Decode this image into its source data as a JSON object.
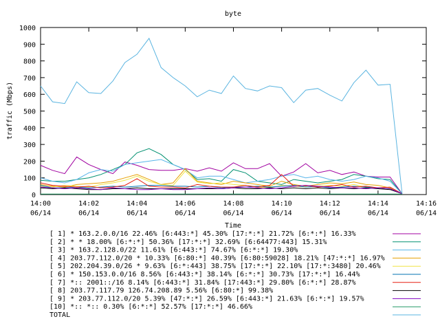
{
  "chart_data": {
    "type": "line",
    "title": "byte",
    "xlabel": "Time",
    "ylabel": "traffic (Mbps)",
    "ylim": [
      0,
      1000
    ],
    "y_ticks": [
      0,
      100,
      200,
      300,
      400,
      500,
      600,
      700,
      800,
      900,
      1000
    ],
    "xlim": [
      0,
      16
    ],
    "x_ticks": [
      {
        "value": 0,
        "time": "14:00",
        "date": "06/14"
      },
      {
        "value": 2,
        "time": "14:02",
        "date": "06/14"
      },
      {
        "value": 4,
        "time": "14:04",
        "date": "06/14"
      },
      {
        "value": 6,
        "time": "14:06",
        "date": "06/14"
      },
      {
        "value": 8,
        "time": "14:08",
        "date": "06/14"
      },
      {
        "value": 10,
        "time": "14:10",
        "date": "06/14"
      },
      {
        "value": 12,
        "time": "14:12",
        "date": "06/14"
      },
      {
        "value": 14,
        "time": "14:14",
        "date": "06/14"
      },
      {
        "value": 16,
        "time": "14:16",
        "date": "06/14"
      }
    ],
    "grid": false,
    "legend_position": "bottom",
    "x": [
      0,
      0.5,
      1,
      1.5,
      2,
      2.5,
      3,
      3.5,
      4,
      4.5,
      5,
      5.5,
      6,
      6.5,
      7,
      7.5,
      8,
      8.5,
      9,
      9.5,
      10,
      10.5,
      11,
      11.5,
      12,
      12.5,
      13,
      13.5,
      14,
      14.5,
      15
    ],
    "series": [
      {
        "name": "[ 1] * 163.2.0.0/16 22.46%  [6:443:*] 45.30% [17:*:*] 21.72% [6:*:*] 16.33%",
        "color": "#a000a0",
        "values": [
          175,
          145,
          125,
          225,
          180,
          150,
          125,
          195,
          175,
          150,
          145,
          145,
          155,
          140,
          160,
          140,
          190,
          155,
          155,
          185,
          110,
          135,
          185,
          130,
          145,
          120,
          135,
          110,
          105,
          105,
          5
        ]
      },
      {
        "name": "[ 2] * * 18.00%  [6:*:*] 50.36% [17:*:*] 32.69% [6:64477:443] 15.31%",
        "color": "#009070",
        "values": [
          85,
          80,
          80,
          90,
          100,
          120,
          150,
          180,
          250,
          275,
          240,
          180,
          150,
          90,
          95,
          80,
          150,
          130,
          80,
          70,
          60,
          90,
          80,
          70,
          80,
          90,
          120,
          110,
          95,
          90,
          5
        ]
      },
      {
        "name": "[ 3] * 163.2.128.0/22 11.61%  [6:443:*] 74.67% [6:*:*] 19.30%",
        "color": "#56b4e9",
        "values": [
          100,
          80,
          70,
          90,
          130,
          150,
          140,
          180,
          190,
          200,
          210,
          180,
          150,
          100,
          110,
          110,
          90,
          70,
          80,
          90,
          110,
          120,
          100,
          110,
          90,
          80,
          90,
          110,
          100,
          80,
          5
        ]
      },
      {
        "name": "[ 4] 203.77.112.0/20 * 10.33%  [6:80:*] 40.39% [6:80:59028] 18.21% [47:*:*] 16.97%",
        "color": "#e69f00",
        "values": [
          60,
          50,
          45,
          60,
          65,
          70,
          80,
          100,
          120,
          90,
          60,
          70,
          155,
          80,
          70,
          60,
          80,
          70,
          60,
          50,
          80,
          60,
          50,
          60,
          70,
          65,
          75,
          60,
          55,
          40,
          5
        ]
      },
      {
        "name": "[ 5] 202.204.39.0/26 * 9.63%  [6:*:443] 38.75% [17:*:*] 22.10% [17:*:3480] 20.46%",
        "color": "#f0e442",
        "values": [
          50,
          45,
          55,
          50,
          45,
          60,
          70,
          85,
          110,
          80,
          60,
          55,
          140,
          75,
          65,
          70,
          60,
          55,
          45,
          40,
          55,
          50,
          45,
          50,
          55,
          50,
          60,
          45,
          40,
          35,
          5
        ]
      },
      {
        "name": "[ 6] * 150.153.0.0/16 8.56%  [6:443:*] 38.14% [6:*:*] 30.73% [17:*:*] 16.44%",
        "color": "#0072b2",
        "values": [
          55,
          40,
          40,
          45,
          40,
          45,
          50,
          45,
          50,
          55,
          55,
          50,
          50,
          45,
          50,
          40,
          45,
          45,
          50,
          45,
          50,
          55,
          45,
          50,
          40,
          45,
          50,
          45,
          40,
          35,
          5
        ]
      },
      {
        "name": "[ 7] *:: 2001::/16 8.14%  [6:443:*] 31.84% [17:443:*] 29.80% [6:*:*] 28.87%",
        "color": "#e51e10",
        "values": [
          70,
          55,
          50,
          45,
          50,
          40,
          45,
          55,
          95,
          50,
          45,
          45,
          40,
          60,
          50,
          45,
          45,
          55,
          45,
          55,
          120,
          50,
          55,
          45,
          50,
          60,
          45,
          50,
          40,
          45,
          5
        ]
      },
      {
        "name": "[ 8] 203.77.117.79 126.74.208.89 5.56%  [6:80:*] 99.38%",
        "color": "#000000",
        "values": [
          40,
          35,
          40,
          35,
          30,
          30,
          35,
          35,
          40,
          35,
          35,
          35,
          35,
          35,
          35,
          35,
          40,
          35,
          35,
          40,
          35,
          40,
          35,
          40,
          35,
          40,
          35,
          40,
          35,
          30,
          5
        ]
      },
      {
        "name": "[ 9] * 203.77.112.0/20 5.39%  [47:*:*] 26.59% [6:443:*] 21.63% [6:*:*] 19.57%",
        "color": "#8000c0",
        "values": [
          45,
          40,
          35,
          40,
          35,
          30,
          40,
          35,
          30,
          30,
          35,
          30,
          30,
          35,
          40,
          35,
          40,
          45,
          40,
          35,
          40,
          50,
          55,
          50,
          45,
          40,
          40,
          35,
          40,
          35,
          5
        ]
      },
      {
        "name": "[10] *:: *:: 0.30%  [6:*:*] 52.57% [17:*:*] 46.66%",
        "color": "#229966",
        "values": [
          3,
          3,
          3,
          3,
          3,
          3,
          3,
          3,
          3,
          3,
          3,
          3,
          3,
          3,
          3,
          3,
          3,
          3,
          3,
          3,
          3,
          3,
          3,
          3,
          3,
          3,
          3,
          3,
          3,
          3,
          3
        ]
      },
      {
        "name": "TOTAL",
        "color": "#5ab4e0",
        "values": [
          650,
          555,
          545,
          675,
          610,
          605,
          680,
          790,
          840,
          935,
          760,
          700,
          650,
          585,
          625,
          605,
          710,
          635,
          620,
          650,
          640,
          550,
          625,
          635,
          595,
          560,
          670,
          745,
          655,
          660,
          5
        ]
      }
    ]
  }
}
